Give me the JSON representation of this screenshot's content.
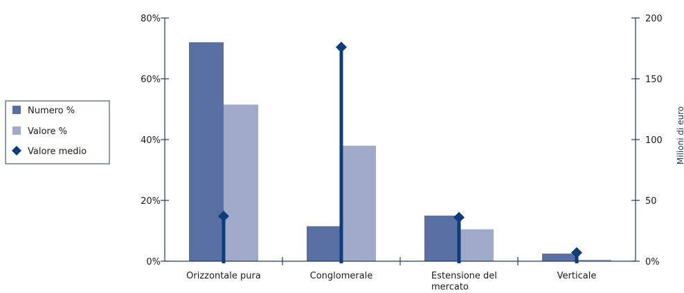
{
  "chart_data": {
    "type": "bar",
    "categories": [
      "Orizzontale pura",
      "Conglomerale",
      "Estensione del\nmercato",
      "Verticale"
    ],
    "series": [
      {
        "name": "Numero %",
        "axis": "left",
        "kind": "bar",
        "color": "#596fa3",
        "values": [
          72,
          11.5,
          15,
          2.5
        ]
      },
      {
        "name": "Valore %",
        "axis": "left",
        "kind": "bar",
        "color": "#a0a9c9",
        "values": [
          51.5,
          38,
          10.5,
          0.5
        ]
      },
      {
        "name": "Valore medio",
        "axis": "right",
        "kind": "lollipop",
        "color": "#0d3d7a",
        "marker": "diamond",
        "values": [
          37,
          176,
          36,
          7
        ]
      }
    ],
    "y_left": {
      "range": [
        0,
        80
      ],
      "ticks": [
        "0%",
        "20%",
        "40%",
        "60%",
        "80%"
      ],
      "tick_values": [
        0,
        20,
        40,
        60,
        80
      ]
    },
    "y_right": {
      "label": "Milioni di euro",
      "range": [
        0,
        200
      ],
      "ticks": [
        "0%",
        "50",
        "100",
        "150",
        "200"
      ],
      "tick_values": [
        0,
        50,
        100,
        150,
        200
      ]
    },
    "legend": {
      "position": "left",
      "entries": [
        "Numero %",
        "Valore %",
        "Valore medio"
      ]
    },
    "grid": false,
    "axis_color": "#1a3a6e"
  }
}
